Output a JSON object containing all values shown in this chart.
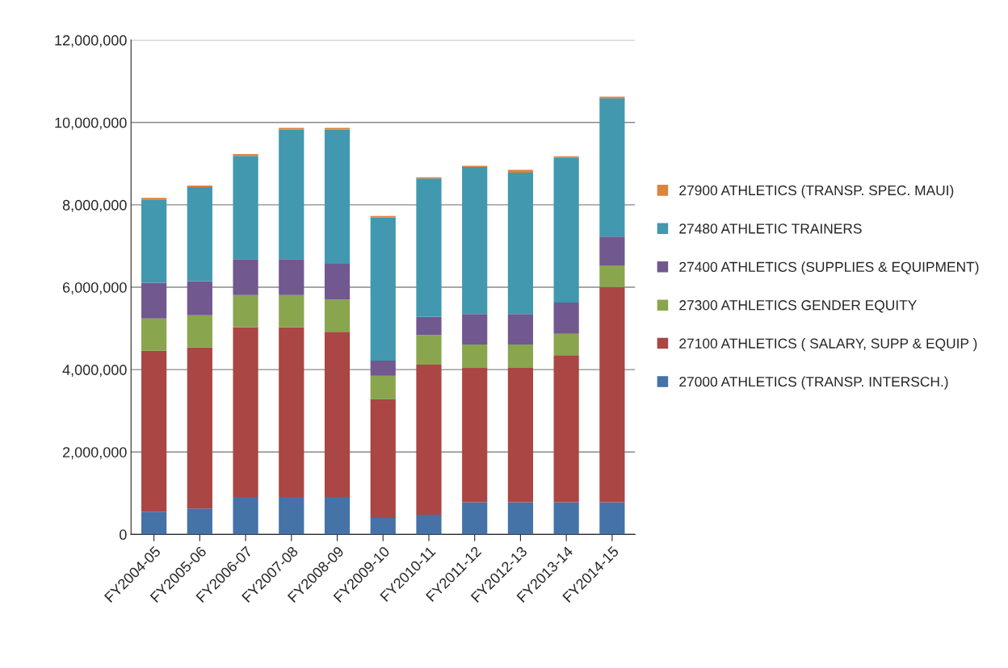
{
  "chart_data": {
    "type": "bar",
    "stacked": true,
    "legend": "right",
    "grid": "y",
    "categories": [
      "FY2004-05",
      "FY2005-06",
      "FY2006-07",
      "FY2007-08",
      "FY2008-09",
      "FY2009-10",
      "FY2010-11",
      "FY2011-12",
      "FY2012-13",
      "FY2013-14",
      "FY2014-15"
    ],
    "series": [
      {
        "name": "27000 ATHLETICS (TRANSP. INTERSCH.)",
        "color": "#4572a7",
        "values": [
          550000,
          630000,
          910000,
          910000,
          910000,
          400000,
          480000,
          780000,
          780000,
          780000,
          780000
        ]
      },
      {
        "name": "27100 ATHLETICS ( SALARY, SUPP & EQUIP )",
        "color": "#aa4643",
        "values": [
          3910000,
          3910000,
          4120000,
          4120000,
          4010000,
          2880000,
          3640000,
          3260000,
          3260000,
          3570000,
          5220000
        ]
      },
      {
        "name": "27300 ATHLETICS GENDER EQUITY",
        "color": "#89a54e",
        "values": [
          780000,
          780000,
          780000,
          780000,
          780000,
          570000,
          720000,
          570000,
          570000,
          520000,
          530000
        ]
      },
      {
        "name": "27400 ATHLETICS (SUPPLIES & EQUIPMENT)",
        "color": "#71588f",
        "values": [
          870000,
          830000,
          870000,
          870000,
          870000,
          370000,
          440000,
          740000,
          740000,
          760000,
          700000
        ]
      },
      {
        "name": "27480 ATHLETIC TRAINERS",
        "color": "#4198af",
        "values": [
          2020000,
          2280000,
          2510000,
          3150000,
          3260000,
          3470000,
          3360000,
          3570000,
          3430000,
          3520000,
          3360000
        ]
      },
      {
        "name": "27900 ATHLETICS (TRANSP. SPEC. MAUI)",
        "color": "#db843d",
        "values": [
          40000,
          40000,
          40000,
          40000,
          40000,
          40000,
          30000,
          30000,
          70000,
          30000,
          40000
        ]
      }
    ],
    "ylim": [
      0,
      12000000
    ],
    "yticks": [
      0,
      {
        "value": 2000000,
        "label": "2,000,000"
      },
      {
        "value": 4000000,
        "label": "4,000,000"
      },
      {
        "value": 6000000,
        "label": "6,000,000"
      },
      {
        "value": 8000000,
        "label": "8,000,000"
      },
      {
        "value": 10000000,
        "label": "10,000,000"
      },
      {
        "value": 12000000,
        "label": "12,000,000"
      }
    ]
  }
}
